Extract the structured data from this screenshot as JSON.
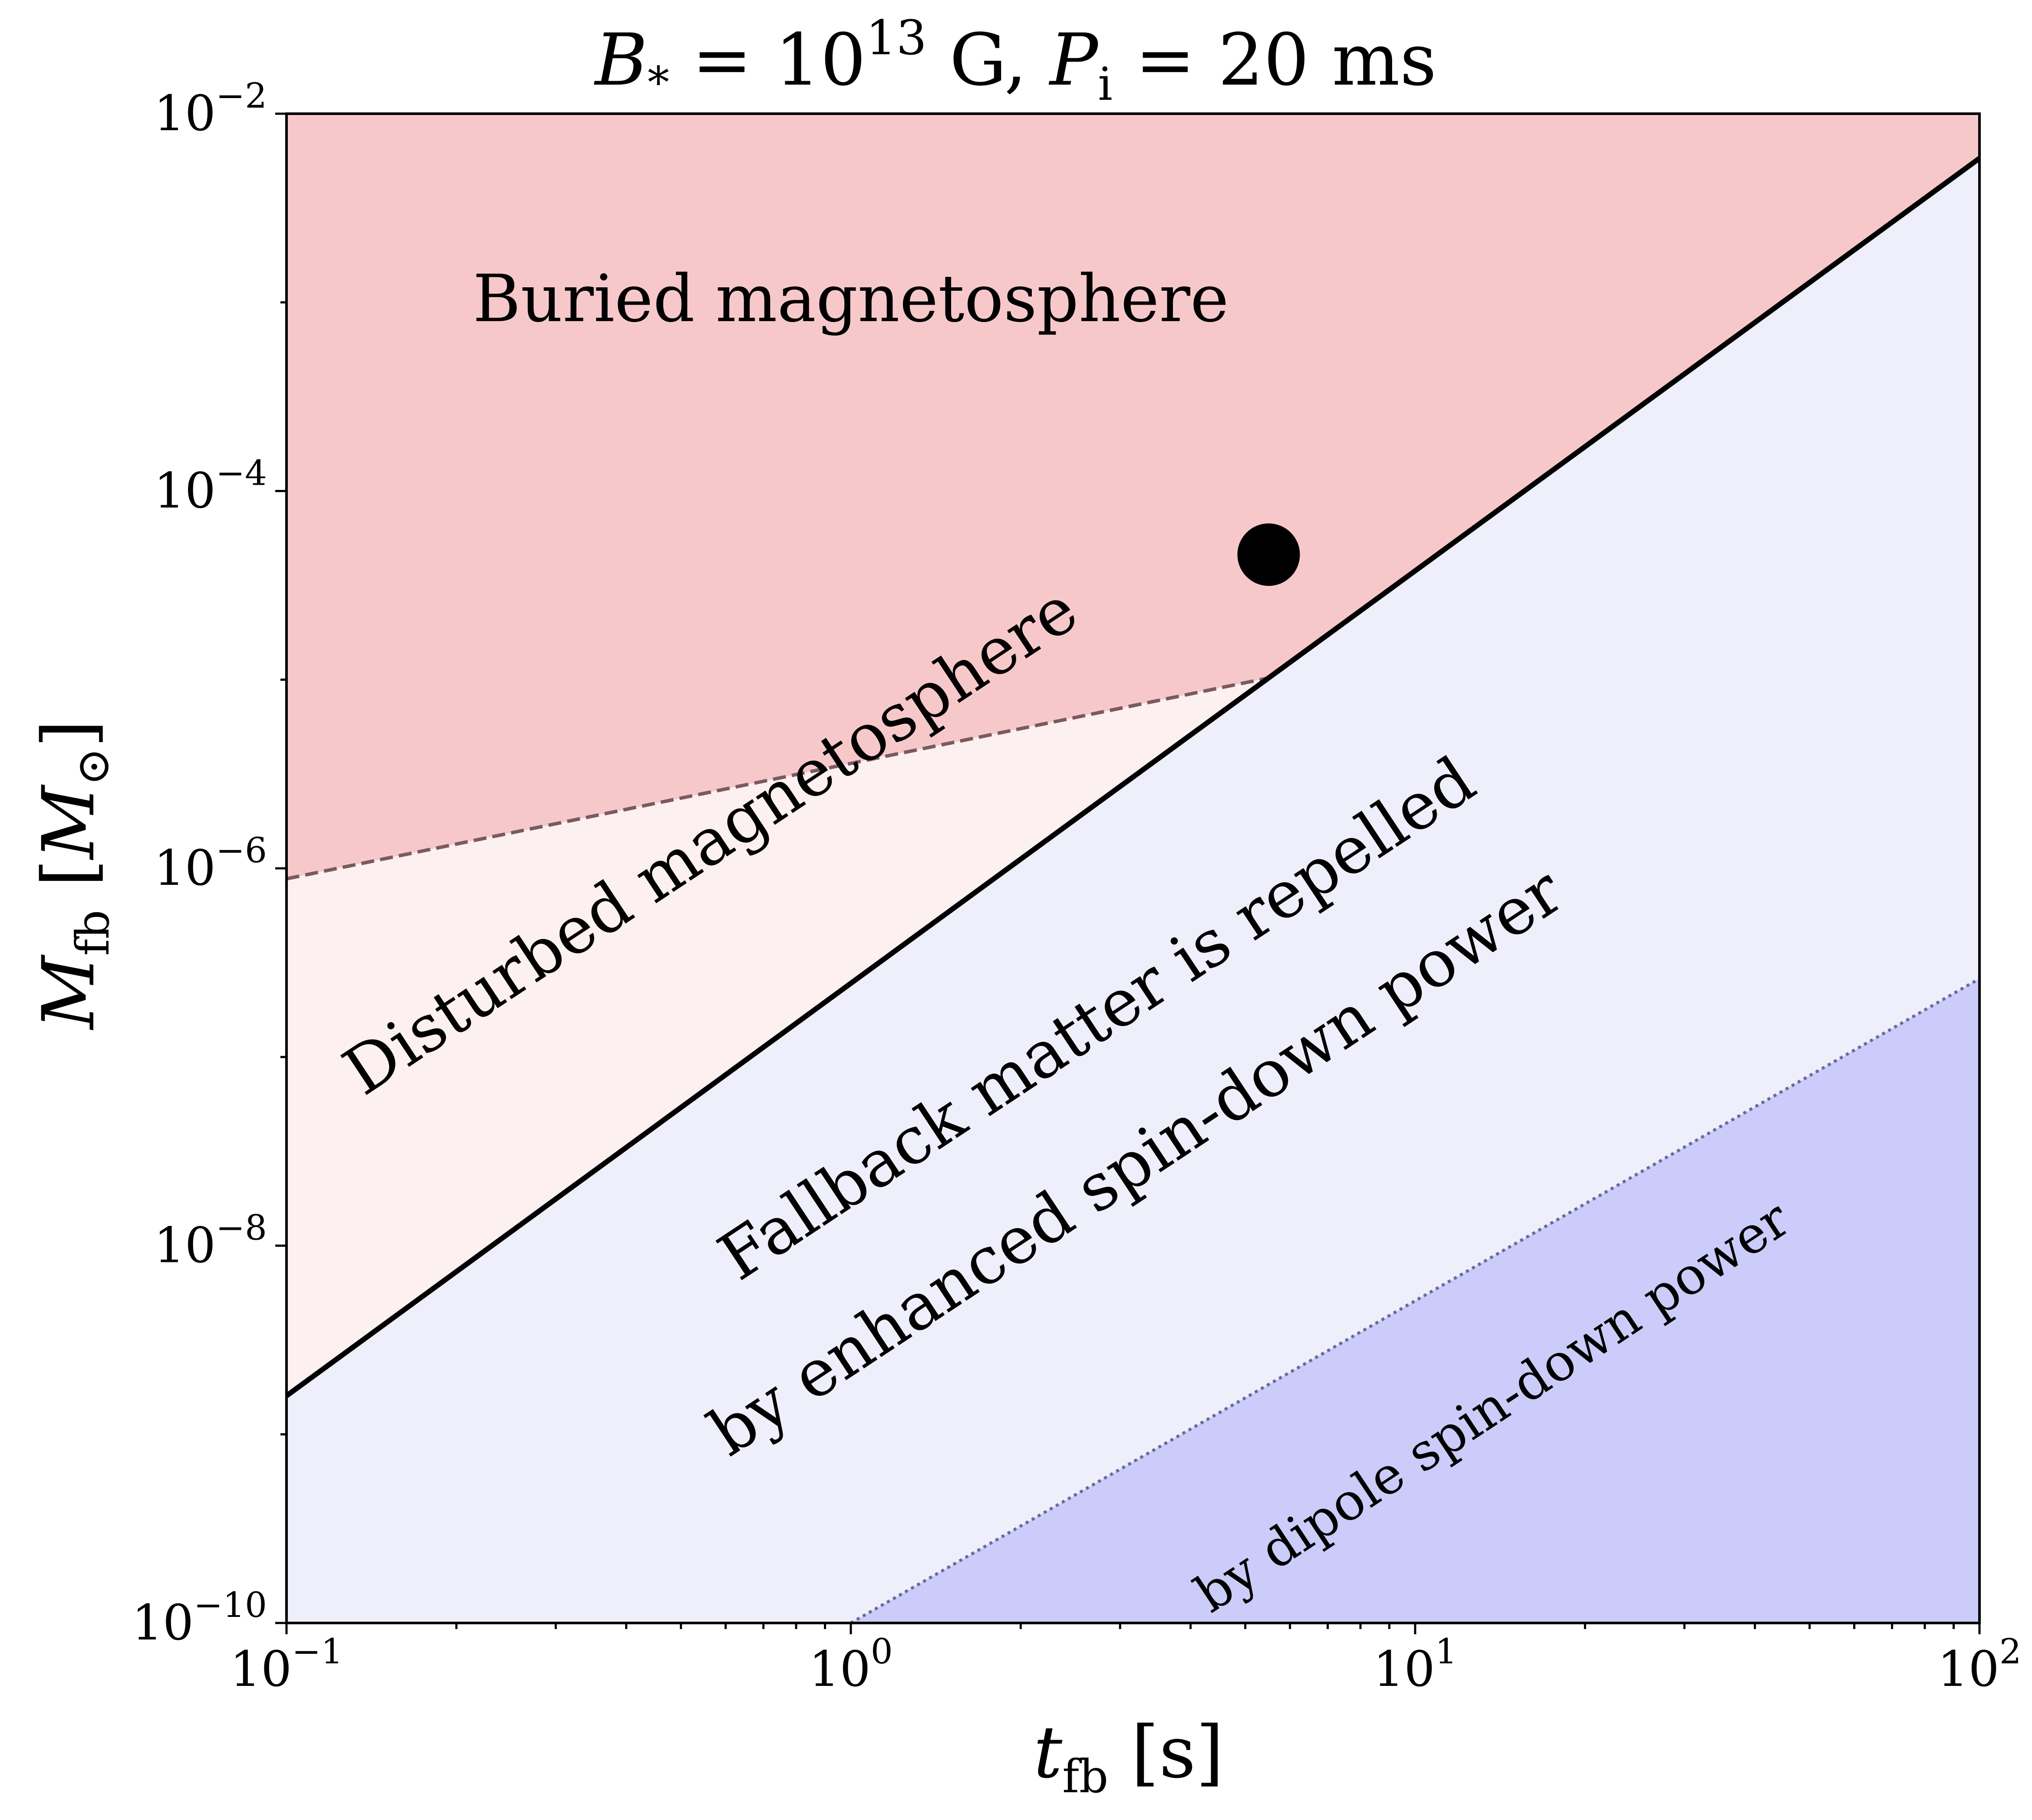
{
  "chart_data": {
    "type": "area",
    "title": {
      "prefix": "B",
      "prefix_sub": "*",
      "text1": " = 10",
      "sup1": "13",
      "text2": " G, ",
      "var2": "P",
      "var2_sub": "i",
      "text3": " = 20 ms"
    },
    "xlabel": {
      "var": "t",
      "sub": "fb",
      "unit": " [s]"
    },
    "ylabel": {
      "var": "M",
      "sub": "fb",
      "unit_open": " [",
      "unit_var": "M",
      "unit_sub": "⊙",
      "unit_close": "]"
    },
    "xscale": "log",
    "yscale": "log",
    "xlim": [
      0.1,
      100
    ],
    "ylim": [
      1e-10,
      0.01
    ],
    "x_ticks": [
      {
        "value": 0.1,
        "base": "10",
        "exp": "−1"
      },
      {
        "value": 1,
        "base": "10",
        "exp": "0"
      },
      {
        "value": 10,
        "base": "10",
        "exp": "1"
      },
      {
        "value": 100,
        "base": "10",
        "exp": "2"
      }
    ],
    "y_ticks": [
      {
        "value": 1e-10,
        "base": "10",
        "exp": "−10"
      },
      {
        "value": 1e-08,
        "base": "10",
        "exp": "−8"
      },
      {
        "value": 1e-06,
        "base": "10",
        "exp": "−6"
      },
      {
        "value": 0.0001,
        "base": "10",
        "exp": "−4"
      },
      {
        "value": 0.01,
        "base": "10",
        "exp": "−2"
      }
    ],
    "series": [
      {
        "style": "solid",
        "x": [
          0.1,
          100
        ],
        "y": [
          1.6e-09,
          0.0058
        ]
      },
      {
        "style": "dashed",
        "x": [
          0.1,
          5.5
        ],
        "y": [
          8.8e-07,
          3.6e-05
        ]
      },
      {
        "style": "dotted",
        "x": [
          1.0,
          100
        ],
        "y": [
          1e-10,
          2.6e-07
        ]
      }
    ],
    "marker": {
      "x": 5.5,
      "y": 4.6e-05
    },
    "regions": [
      {
        "label": "Buried magnetosphere",
        "color": "#f7c8ca"
      },
      {
        "label": "Disturbed magnetosphere",
        "color": "#fcf0f1"
      },
      {
        "label_lines": [
          "Fallback matter is repelled",
          "by enhanced spin-down power"
        ],
        "color": "#efeffc"
      },
      {
        "label": "by dipole spin-down power",
        "color": "#ccccfa"
      }
    ],
    "colors": {
      "boundary": "#000000",
      "dashed": "#7a5a5f",
      "dotted": "#6b6b99"
    }
  }
}
